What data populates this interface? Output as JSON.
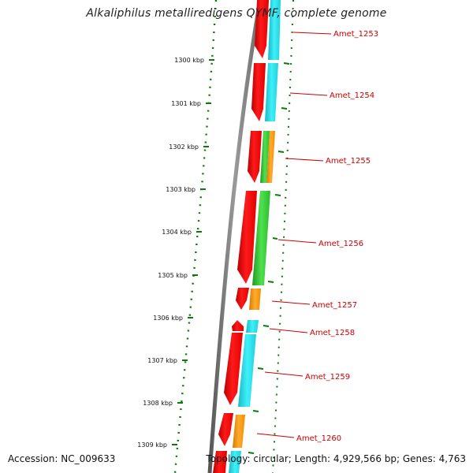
{
  "title": "Alkaliphilus metalliredigens QYMF, complete genome",
  "footer": {
    "accession": "Accession: NC_009633",
    "summary": "Topology: circular; Length: 4,929,566 bp; Genes: 4,763"
  },
  "colors": {
    "backbone": "#7a7a7a",
    "tick": "#0a7a0a",
    "cds": "#ff0000",
    "label": "#cc0000",
    "cog_cyan": "#22dde8",
    "cog_green": "#33cc33",
    "cog_orange": "#ff9900"
  },
  "kbp_ticks": [
    "1300 kbp",
    "1301 kbp",
    "1302 kbp",
    "1303 kbp",
    "1304 kbp",
    "1305 kbp",
    "1306 kbp",
    "1307 kbp",
    "1308 kbp",
    "1309 kbp"
  ],
  "genes": [
    {
      "label": "Amet_1253",
      "strand": "reverse",
      "cog_color": "cyan"
    },
    {
      "label": "Amet_1254",
      "strand": "reverse",
      "cog_color": "cyan"
    },
    {
      "label": "Amet_1255",
      "strand": "reverse",
      "cog_color": "green+orange"
    },
    {
      "label": "Amet_1256",
      "strand": "reverse",
      "cog_color": "green"
    },
    {
      "label": "Amet_1257",
      "strand": "reverse",
      "cog_color": "orange"
    },
    {
      "label": "Amet_1258",
      "strand": "forward",
      "cog_color": "cyan"
    },
    {
      "label": "Amet_1259",
      "strand": "reverse",
      "cog_color": "cyan"
    },
    {
      "label": "Amet_1260",
      "strand": "reverse",
      "cog_color": "orange"
    }
  ]
}
